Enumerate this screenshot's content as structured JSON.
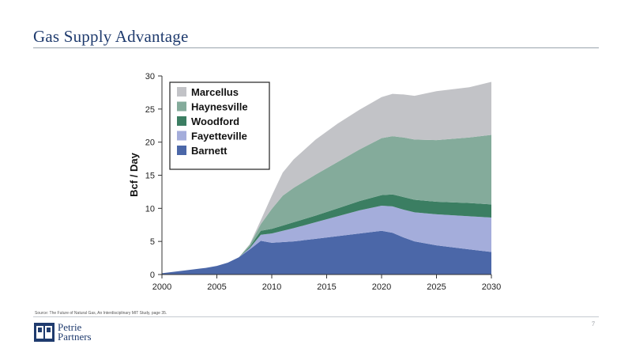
{
  "slide": {
    "title": "Gas Supply Advantage",
    "source": "Source: The Future of Natural Gas, An Interdisciplinary MIT Study, page 35.",
    "page_number": "7",
    "logo_line1": "Petrie",
    "logo_line2": "Partners"
  },
  "colors": {
    "title": "#1f3b6e",
    "Marcellus": "#c2c3c7",
    "Haynesville": "#84ab9b",
    "Woodford": "#3b7e62",
    "Fayetteville": "#a4addb",
    "Barnett": "#4b67a8"
  },
  "chart_data": {
    "type": "area",
    "stacked": true,
    "ylabel": "Bcf / Day",
    "xlabel": "",
    "xlim": [
      2000,
      2030
    ],
    "ylim": [
      0,
      30
    ],
    "xticks": [
      2000,
      2005,
      2010,
      2015,
      2020,
      2025,
      2030
    ],
    "yticks": [
      0,
      5,
      10,
      15,
      20,
      25,
      30
    ],
    "legend_position": "top-left",
    "x": [
      2000,
      2002,
      2004,
      2005,
      2006,
      2007,
      2008,
      2009,
      2010,
      2011,
      2012,
      2014,
      2016,
      2018,
      2020,
      2021,
      2022,
      2023,
      2025,
      2028,
      2030
    ],
    "series": [
      {
        "name": "Barnett",
        "values": [
          0.2,
          0.6,
          1.0,
          1.3,
          1.8,
          2.6,
          3.8,
          5.1,
          4.8,
          4.9,
          5.0,
          5.4,
          5.8,
          6.2,
          6.6,
          6.3,
          5.6,
          5.0,
          4.4,
          3.8,
          3.4
        ]
      },
      {
        "name": "Fayetteville",
        "values": [
          0,
          0,
          0,
          0,
          0,
          0,
          0.2,
          0.9,
          1.4,
          1.7,
          2.0,
          2.5,
          3.0,
          3.5,
          3.8,
          4.0,
          4.2,
          4.4,
          4.7,
          5.0,
          5.2
        ]
      },
      {
        "name": "Woodford",
        "values": [
          0,
          0,
          0,
          0,
          0,
          0,
          0.2,
          0.6,
          0.7,
          0.8,
          0.9,
          1.0,
          1.2,
          1.4,
          1.6,
          1.8,
          1.9,
          1.9,
          1.9,
          2.0,
          2.0
        ]
      },
      {
        "name": "Haynesville",
        "values": [
          0,
          0,
          0,
          0,
          0,
          0,
          0.3,
          1.0,
          3.0,
          4.5,
          5.2,
          6.2,
          7.0,
          7.8,
          8.6,
          8.8,
          9.0,
          9.1,
          9.3,
          9.9,
          10.5
        ]
      },
      {
        "name": "Marcellus",
        "values": [
          0,
          0,
          0,
          0,
          0,
          0,
          0.1,
          0.6,
          2.0,
          3.5,
          4.3,
          5.3,
          5.8,
          6.0,
          6.2,
          6.4,
          6.5,
          6.6,
          7.4,
          7.6,
          8.0
        ]
      }
    ]
  }
}
